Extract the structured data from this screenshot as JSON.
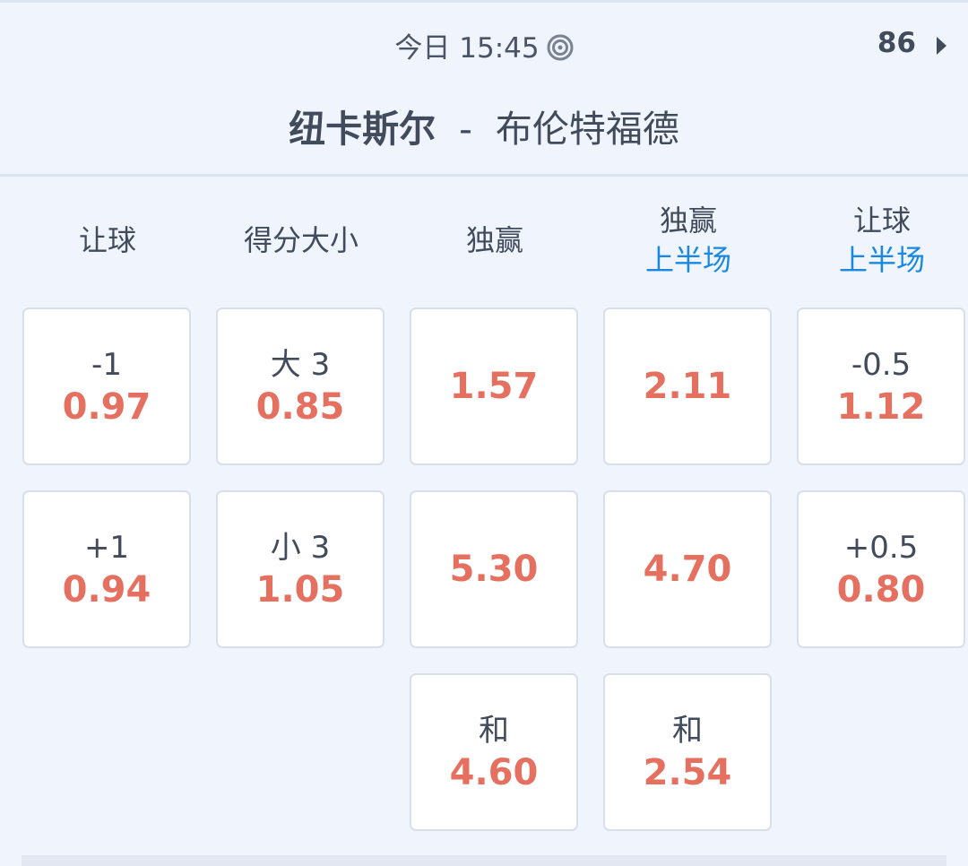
{
  "header": {
    "time": "今日 15:45",
    "live_icon": "target-icon",
    "count": "86",
    "more_icon": "caret-right-icon"
  },
  "match": {
    "home": "纽卡斯尔",
    "separator": "-",
    "away": "布伦特福德"
  },
  "colors": {
    "odds": "#e5705f",
    "accent": "#1a88e0",
    "text": "#414b5b",
    "background": "#eff4fd"
  },
  "columns": [
    {
      "title": "让球",
      "sub": ""
    },
    {
      "title": "得分大小",
      "sub": ""
    },
    {
      "title": "独赢",
      "sub": ""
    },
    {
      "title": "独赢",
      "sub": "上半场"
    },
    {
      "title": "让球",
      "sub": "上半场"
    }
  ],
  "cells": [
    [
      {
        "label": "-1",
        "odd": "0.97"
      },
      {
        "label": "+1",
        "odd": "0.94"
      }
    ],
    [
      {
        "label": "大 3",
        "odd": "0.85"
      },
      {
        "label": "小 3",
        "odd": "1.05"
      }
    ],
    [
      {
        "label": "",
        "odd": "1.57"
      },
      {
        "label": "",
        "odd": "5.30"
      },
      {
        "label": "和",
        "odd": "4.60"
      }
    ],
    [
      {
        "label": "",
        "odd": "2.11"
      },
      {
        "label": "",
        "odd": "4.70"
      },
      {
        "label": "和",
        "odd": "2.54"
      }
    ],
    [
      {
        "label": "-0.5",
        "odd": "1.12"
      },
      {
        "label": "+0.5",
        "odd": "0.80"
      }
    ]
  ]
}
